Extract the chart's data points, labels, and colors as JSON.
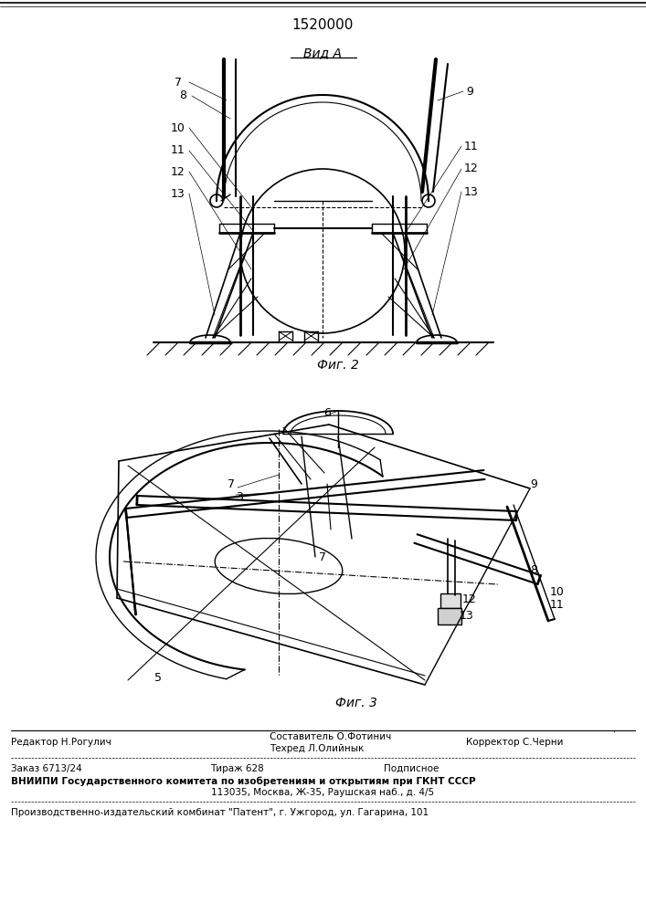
{
  "patent_number": "1520000",
  "vid_a": "Вид А",
  "fig2_label": "Фиг. 2",
  "fig3_label": "Фиг. 3",
  "footer_editor": "Редактор Н.Рогулич",
  "footer_compiler1": "Составитель О.Фотинич",
  "footer_compiler2": "Техред Л.Олийнык",
  "footer_corrector": "Корректор С.Черни",
  "footer_order": "Заказ 6713/24",
  "footer_tirazh": "Тираж 628",
  "footer_podp": "Подписное",
  "footer_vniip": "ВНИИПИ Государственного комитета по изобретениям и открытиям при ГКНТ СССР",
  "footer_addr": "113035, Москва, Ж-35, Раушская наб., д. 4/5",
  "footer_patent": "Производственно-издательский комбинат \"Патент\", г. Ужгород, ул. Гагарина, 101",
  "bg_color": "#ffffff",
  "lc": "#000000",
  "fig_width": 7.07,
  "fig_height": 10.0,
  "dpi": 100
}
